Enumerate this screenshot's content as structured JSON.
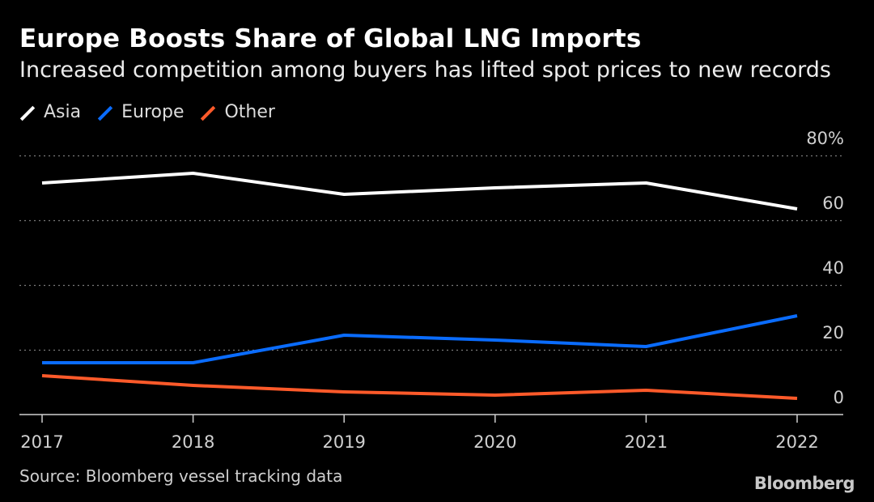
{
  "header": {
    "title": "Europe Boosts Share of Global LNG Imports",
    "subtitle": "Increased competition among buyers has lifted spot prices to new records"
  },
  "legend": [
    {
      "label": "Asia",
      "color": "#ffffff"
    },
    {
      "label": "Europe",
      "color": "#0a6cff"
    },
    {
      "label": "Other",
      "color": "#ff5a2a"
    }
  ],
  "chart_data": {
    "type": "line",
    "x": [
      "2017",
      "2018",
      "2019",
      "2020",
      "2021",
      "2022"
    ],
    "series": [
      {
        "name": "Asia",
        "color": "#ffffff",
        "values": [
          71.5,
          74.5,
          68,
          70,
          71.5,
          63.5
        ]
      },
      {
        "name": "Europe",
        "color": "#0a6cff",
        "values": [
          16,
          16,
          24.5,
          23,
          21,
          30.5
        ]
      },
      {
        "name": "Other",
        "color": "#ff5a2a",
        "values": [
          12,
          9,
          7,
          6,
          7.5,
          5
        ]
      }
    ],
    "y_ticks": [
      "0",
      "20",
      "40",
      "60",
      "80%"
    ],
    "ylim": [
      0,
      80
    ],
    "grid": true,
    "legend_position": "top-left"
  },
  "footer": {
    "source": "Source: Bloomberg vessel tracking data",
    "brand": "Bloomberg"
  }
}
